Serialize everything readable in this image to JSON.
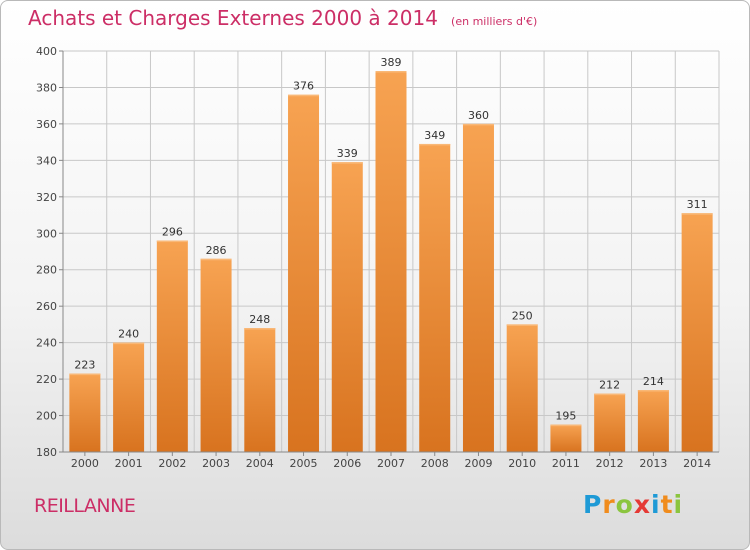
{
  "header": {
    "title": "Achats et Charges Externes 2000 à 2014",
    "subtitle": "(en milliers d'€)"
  },
  "footer": {
    "commune": "REILLANNE",
    "logo": {
      "text": "Proxiti",
      "letters": [
        "P",
        "r",
        "o",
        "x",
        "i",
        "t",
        "i"
      ],
      "colors": [
        "#1e9ad6",
        "#f08c1d",
        "#8bc53f",
        "#e53935",
        "#1e9ad6",
        "#f08c1d",
        "#8bc53f"
      ]
    }
  },
  "colors": {
    "bar_top": "#f7a352",
    "bar_bottom": "#d8731f",
    "accent": "#cc2e66",
    "grid": "#c8c8c8"
  },
  "chart_data": {
    "type": "bar",
    "title": "Achats et Charges Externes 2000 à 2014",
    "subtitle": "(en milliers d'€)",
    "xlabel": "",
    "ylabel": "",
    "categories": [
      "2000",
      "2001",
      "2002",
      "2003",
      "2004",
      "2005",
      "2006",
      "2007",
      "2008",
      "2009",
      "2010",
      "2011",
      "2012",
      "2013",
      "2014"
    ],
    "values": [
      223,
      240,
      296,
      286,
      248,
      376,
      339,
      389,
      349,
      360,
      250,
      195,
      212,
      214,
      311
    ],
    "ylim": [
      180,
      400
    ],
    "yticks": [
      180,
      200,
      220,
      240,
      260,
      280,
      300,
      320,
      340,
      360,
      380,
      400
    ],
    "grid": true,
    "show_data_labels": true
  }
}
